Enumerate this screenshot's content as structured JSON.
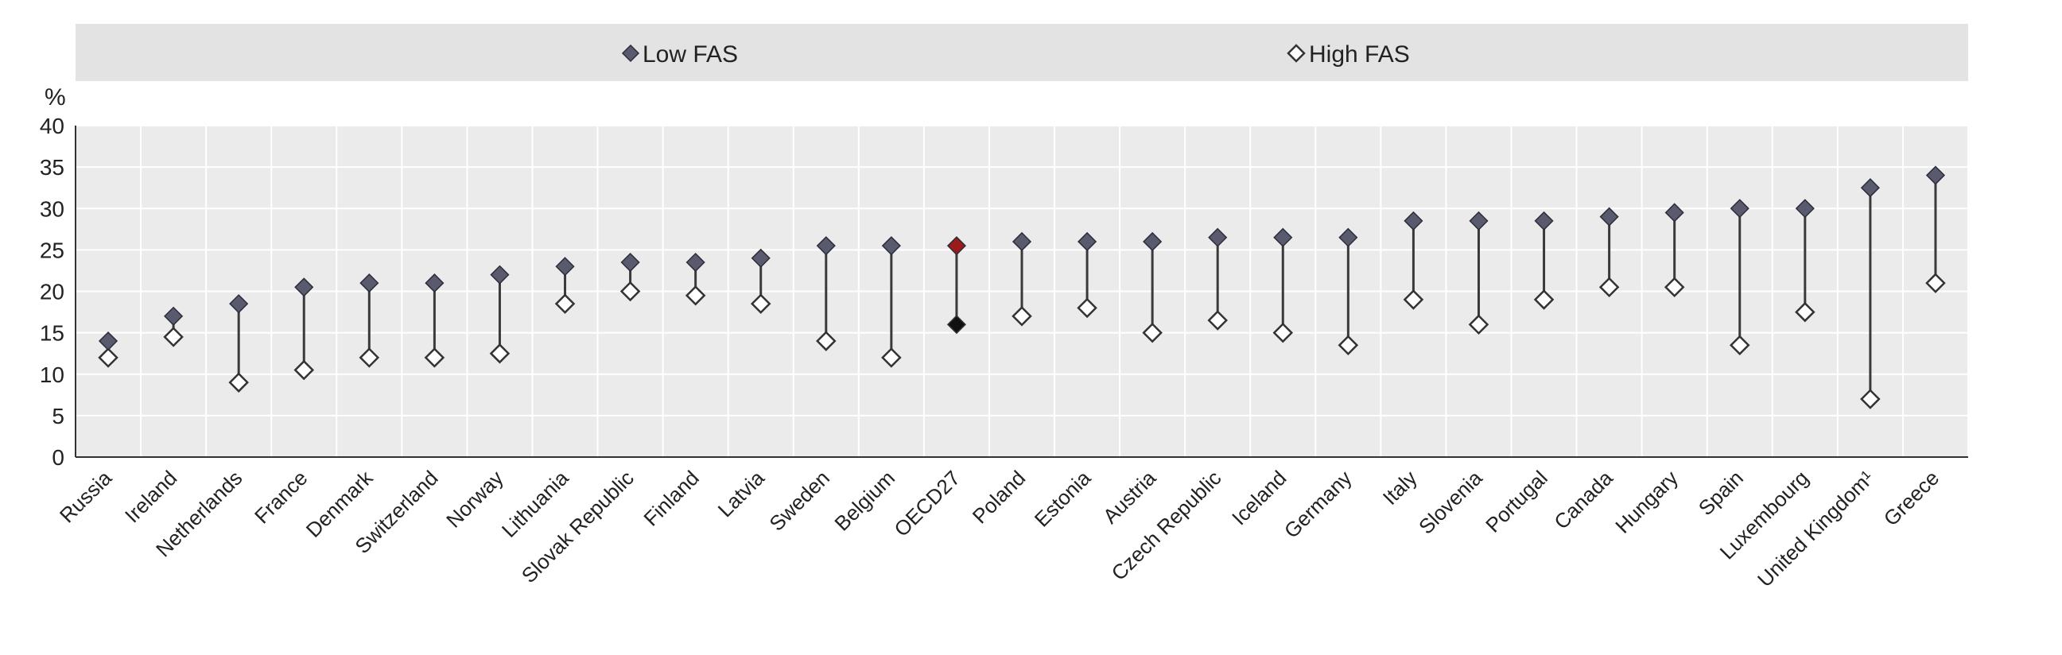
{
  "chart_data": {
    "type": "scatter",
    "title": "",
    "ylabel": "%",
    "xlabel": "",
    "ylim": [
      0,
      40
    ],
    "yticks": [
      0,
      5,
      10,
      15,
      20,
      25,
      30,
      35,
      40
    ],
    "grid": true,
    "legend_position": "top",
    "categories": [
      "Russia",
      "Ireland",
      "Netherlands",
      "France",
      "Denmark",
      "Switzerland",
      "Norway",
      "Lithuania",
      "Slovak Republic",
      "Finland",
      "Latvia",
      "Sweden",
      "Belgium",
      "OECD27",
      "Poland",
      "Estonia",
      "Austria",
      "Czech Republic",
      "Iceland",
      "Germany",
      "Italy",
      "Slovenia",
      "Portugal",
      "Canada",
      "Hungary",
      "Spain",
      "Luxembourg",
      "United Kingdom¹",
      "Greece"
    ],
    "highlight_category": "OECD27",
    "series": [
      {
        "name": "Low FAS",
        "marker": "filled-diamond",
        "values": [
          14,
          17,
          18.5,
          20.5,
          21,
          21,
          22,
          23,
          23.5,
          23.5,
          24,
          25.5,
          25.5,
          25.5,
          26,
          26,
          26,
          26.5,
          26.5,
          26.5,
          28.5,
          28.5,
          28.5,
          29,
          29.5,
          30,
          30,
          32.5,
          34
        ]
      },
      {
        "name": "High FAS",
        "marker": "hollow-diamond",
        "values": [
          12,
          14.5,
          9,
          10.5,
          12,
          12,
          12.5,
          18.5,
          20,
          19.5,
          18.5,
          14,
          12,
          16,
          17,
          18,
          15,
          16.5,
          15,
          13.5,
          19,
          16,
          19,
          20.5,
          20.5,
          13.5,
          17.5,
          7,
          21
        ]
      }
    ]
  },
  "colors": {
    "low_fas_marker": "#5a5a6e",
    "high_fas_marker": "#ffffff",
    "connector": "#3a3a3a",
    "oecd_low_marker": "#9b1b1b",
    "oecd_high_marker": "#111111",
    "plot_background": "#ebebeb",
    "legend_background": "#e3e3e3",
    "grid": "#ffffff",
    "text": "#222222"
  }
}
